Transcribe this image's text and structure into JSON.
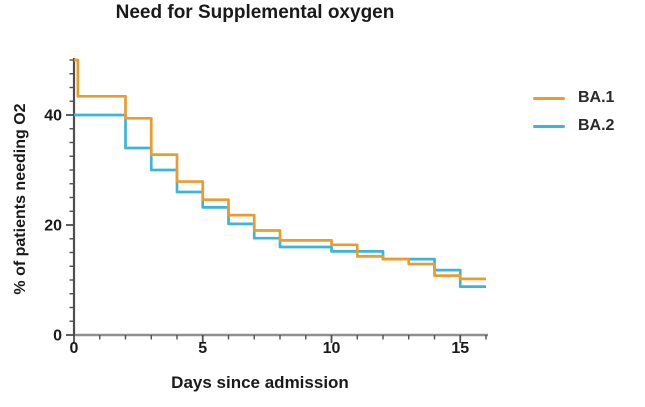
{
  "title": "Need for Supplemental oxygen",
  "chart_data": {
    "type": "line",
    "subtype": "step",
    "title": "Need for Supplemental oxygen",
    "xlabel": "Days since admission",
    "ylabel": "% of patients needing O2",
    "xlim": [
      0,
      16
    ],
    "ylim": [
      0,
      50
    ],
    "xticks": [
      0,
      5,
      10,
      15
    ],
    "yticks": [
      0,
      20,
      40
    ],
    "xtick_minor_interval": 1,
    "ytick_minor_interval": 2.5,
    "grid": false,
    "legend_position": "right-top",
    "series": [
      {
        "name": "BA.2",
        "color": "#3cb6d8",
        "points": [
          [
            0,
            40
          ],
          [
            2,
            34
          ],
          [
            3,
            30
          ],
          [
            4,
            26
          ],
          [
            5,
            23.2
          ],
          [
            6,
            20.2
          ],
          [
            7,
            17.6
          ],
          [
            8,
            16
          ],
          [
            10,
            15.2
          ],
          [
            12,
            13.8
          ],
          [
            14,
            11.8
          ],
          [
            15,
            8.8
          ],
          [
            16,
            8.8
          ]
        ]
      },
      {
        "name": "BA.1",
        "color": "#ee9b2e",
        "points": [
          [
            0,
            50
          ],
          [
            0.15,
            43.4
          ],
          [
            2,
            39.4
          ],
          [
            3,
            32.8
          ],
          [
            4,
            27.9
          ],
          [
            5,
            24.6
          ],
          [
            6,
            21.8
          ],
          [
            7,
            19
          ],
          [
            8,
            17.2
          ],
          [
            10,
            16.4
          ],
          [
            11,
            14.3
          ],
          [
            12,
            13.8
          ],
          [
            13,
            12.9
          ],
          [
            14,
            10.8
          ],
          [
            15,
            10.2
          ],
          [
            16,
            10.2
          ]
        ]
      }
    ],
    "axis_color": "#8f9092",
    "tick_color": "#4e4e50",
    "tick_label_color": "#1a1a1a"
  },
  "legend_order": [
    "BA.1",
    "BA.2"
  ]
}
